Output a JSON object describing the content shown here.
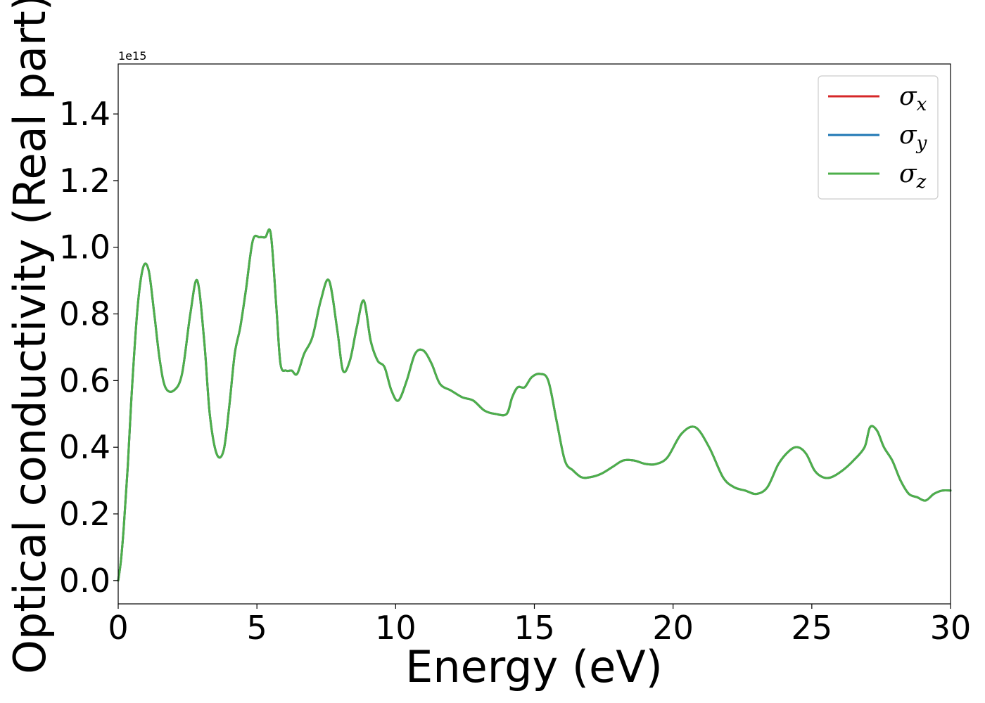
{
  "chart_data": {
    "type": "line",
    "xlabel": "Energy (eV)",
    "ylabel": "Optical conductivity (Real part)",
    "y_offset_label": "1e15",
    "xlim": [
      0,
      30
    ],
    "ylim": [
      -0.07,
      1.55
    ],
    "x_ticks": [
      0,
      5,
      10,
      15,
      20,
      25,
      30
    ],
    "x_tick_labels": [
      "0",
      "5",
      "10",
      "15",
      "20",
      "25",
      "30"
    ],
    "y_ticks": [
      0.0,
      0.2,
      0.4,
      0.6,
      0.8,
      1.0,
      1.2,
      1.4
    ],
    "y_tick_labels": [
      "0.0",
      "0.2",
      "0.4",
      "0.6",
      "0.8",
      "1.0",
      "1.2",
      "1.4"
    ],
    "grid": false,
    "legend_position": "top-right",
    "x": [
      0,
      0.1,
      0.2,
      0.35,
      0.5,
      0.7,
      0.9,
      1.1,
      1.3,
      1.5,
      1.7,
      2.0,
      2.3,
      2.6,
      2.85,
      3.1,
      3.3,
      3.55,
      3.8,
      4.0,
      4.2,
      4.4,
      4.6,
      4.85,
      5.1,
      5.3,
      5.5,
      5.7,
      5.85,
      6.05,
      6.25,
      6.45,
      6.7,
      7.0,
      7.3,
      7.6,
      7.9,
      8.1,
      8.35,
      8.6,
      8.85,
      9.1,
      9.35,
      9.6,
      9.85,
      10.1,
      10.4,
      10.7,
      11.0,
      11.3,
      11.6,
      12.0,
      12.4,
      12.8,
      13.2,
      13.6,
      14.0,
      14.2,
      14.4,
      14.65,
      14.9,
      15.2,
      15.5,
      15.8,
      16.1,
      16.4,
      16.7,
      17.0,
      17.4,
      17.8,
      18.2,
      18.6,
      19.0,
      19.4,
      19.8,
      20.3,
      20.8,
      21.3,
      21.8,
      22.2,
      22.6,
      23.0,
      23.4,
      23.8,
      24.2,
      24.5,
      24.8,
      25.1,
      25.4,
      25.7,
      26.1,
      26.5,
      26.9,
      27.1,
      27.35,
      27.6,
      27.9,
      28.2,
      28.5,
      28.8,
      29.1,
      29.4,
      29.7,
      30.0
    ],
    "series": [
      {
        "name": "σx",
        "color": "#d62728",
        "values": [
          0.0,
          0.06,
          0.16,
          0.35,
          0.58,
          0.82,
          0.94,
          0.93,
          0.8,
          0.66,
          0.58,
          0.57,
          0.62,
          0.8,
          0.9,
          0.72,
          0.5,
          0.38,
          0.39,
          0.52,
          0.68,
          0.76,
          0.87,
          1.02,
          1.03,
          1.03,
          1.04,
          0.82,
          0.65,
          0.63,
          0.63,
          0.62,
          0.68,
          0.73,
          0.84,
          0.9,
          0.75,
          0.63,
          0.66,
          0.76,
          0.84,
          0.72,
          0.66,
          0.64,
          0.57,
          0.54,
          0.6,
          0.68,
          0.69,
          0.65,
          0.59,
          0.57,
          0.55,
          0.54,
          0.51,
          0.5,
          0.5,
          0.55,
          0.58,
          0.58,
          0.61,
          0.62,
          0.6,
          0.48,
          0.36,
          0.33,
          0.31,
          0.31,
          0.32,
          0.34,
          0.36,
          0.36,
          0.35,
          0.35,
          0.37,
          0.44,
          0.46,
          0.4,
          0.31,
          0.28,
          0.27,
          0.26,
          0.28,
          0.35,
          0.39,
          0.4,
          0.38,
          0.33,
          0.31,
          0.31,
          0.33,
          0.36,
          0.4,
          0.46,
          0.45,
          0.4,
          0.36,
          0.3,
          0.26,
          0.25,
          0.24,
          0.26,
          0.27,
          0.27
        ]
      },
      {
        "name": "σy",
        "color": "#1f77b4",
        "values": [
          0.0,
          0.06,
          0.16,
          0.35,
          0.58,
          0.82,
          0.94,
          0.93,
          0.8,
          0.66,
          0.58,
          0.57,
          0.62,
          0.8,
          0.9,
          0.72,
          0.5,
          0.38,
          0.39,
          0.52,
          0.68,
          0.76,
          0.87,
          1.02,
          1.03,
          1.03,
          1.04,
          0.82,
          0.65,
          0.63,
          0.63,
          0.62,
          0.68,
          0.73,
          0.84,
          0.9,
          0.75,
          0.63,
          0.66,
          0.76,
          0.84,
          0.72,
          0.66,
          0.64,
          0.57,
          0.54,
          0.6,
          0.68,
          0.69,
          0.65,
          0.59,
          0.57,
          0.55,
          0.54,
          0.51,
          0.5,
          0.5,
          0.55,
          0.58,
          0.58,
          0.61,
          0.62,
          0.6,
          0.48,
          0.36,
          0.33,
          0.31,
          0.31,
          0.32,
          0.34,
          0.36,
          0.36,
          0.35,
          0.35,
          0.37,
          0.44,
          0.46,
          0.4,
          0.31,
          0.28,
          0.27,
          0.26,
          0.28,
          0.35,
          0.39,
          0.4,
          0.38,
          0.33,
          0.31,
          0.31,
          0.33,
          0.36,
          0.4,
          0.46,
          0.45,
          0.4,
          0.36,
          0.3,
          0.26,
          0.25,
          0.24,
          0.26,
          0.27,
          0.27
        ]
      },
      {
        "name": "σz",
        "color": "#4daf4a",
        "values": [
          0.0,
          0.06,
          0.16,
          0.35,
          0.58,
          0.82,
          0.94,
          0.93,
          0.8,
          0.66,
          0.58,
          0.57,
          0.62,
          0.8,
          0.9,
          0.72,
          0.5,
          0.38,
          0.39,
          0.52,
          0.68,
          0.76,
          0.87,
          1.02,
          1.03,
          1.03,
          1.04,
          0.82,
          0.65,
          0.63,
          0.63,
          0.62,
          0.68,
          0.73,
          0.84,
          0.9,
          0.75,
          0.63,
          0.66,
          0.76,
          0.84,
          0.72,
          0.66,
          0.64,
          0.57,
          0.54,
          0.6,
          0.68,
          0.69,
          0.65,
          0.59,
          0.57,
          0.55,
          0.54,
          0.51,
          0.5,
          0.5,
          0.55,
          0.58,
          0.58,
          0.61,
          0.62,
          0.6,
          0.48,
          0.36,
          0.33,
          0.31,
          0.31,
          0.32,
          0.34,
          0.36,
          0.36,
          0.35,
          0.35,
          0.37,
          0.44,
          0.46,
          0.4,
          0.31,
          0.28,
          0.27,
          0.26,
          0.28,
          0.35,
          0.39,
          0.4,
          0.38,
          0.33,
          0.31,
          0.31,
          0.33,
          0.36,
          0.4,
          0.46,
          0.45,
          0.4,
          0.36,
          0.3,
          0.26,
          0.25,
          0.24,
          0.26,
          0.27,
          0.27
        ]
      }
    ],
    "legend": [
      {
        "symbol": "σ",
        "sub": "x",
        "color": "#d62728"
      },
      {
        "symbol": "σ",
        "sub": "y",
        "color": "#1f77b4"
      },
      {
        "symbol": "σ",
        "sub": "z",
        "color": "#4daf4a"
      }
    ]
  }
}
